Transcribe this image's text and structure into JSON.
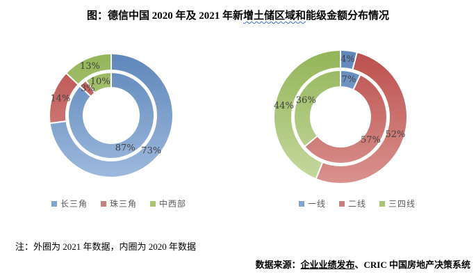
{
  "title": {
    "prefix": "图：德信中国 2020 年及 2021 年新",
    "flagged": "增土储区域和",
    "suffix": "能级金额分布情况"
  },
  "note": "注：外圈为 2021 年数据，内圈为 2020 年数据",
  "source": {
    "prefix": "数据来源：",
    "underlined": "企业业绩发布",
    "suffix": "、CRIC 中国房地产决策系统"
  },
  "chart_data": [
    {
      "type": "pie",
      "variant": "double-ring-donut",
      "name": "新增土储区域金额分布",
      "categories": [
        "长三角",
        "珠三角",
        "中西部"
      ],
      "series": [
        {
          "name": "2021年（外圈）",
          "values": [
            73,
            14,
            13
          ]
        },
        {
          "name": "2020年（内圈）",
          "values": [
            87,
            3,
            10
          ]
        }
      ],
      "unit": "%",
      "legend_position": "bottom",
      "colors": [
        {
          "top": "#5e86ba",
          "bottom": "#9db9dd",
          "legend": "#7da3d1"
        },
        {
          "top": "#bb4f4c",
          "bottom": "#d9928f",
          "legend": "#c8807d"
        },
        {
          "top": "#93b457",
          "bottom": "#c6d9a0",
          "legend": "#a9c573"
        }
      ]
    },
    {
      "type": "pie",
      "variant": "double-ring-donut",
      "name": "新增土储能级金额分布",
      "categories": [
        "一线",
        "二线",
        "三四线"
      ],
      "series": [
        {
          "name": "2021年（外圈）",
          "values": [
            4,
            52,
            44
          ]
        },
        {
          "name": "2020年（内圈）",
          "values": [
            7,
            57,
            36
          ]
        }
      ],
      "unit": "%",
      "legend_position": "bottom",
      "colors": [
        {
          "top": "#5e86ba",
          "bottom": "#9db9dd",
          "legend": "#7da3d1"
        },
        {
          "top": "#bb4f4c",
          "bottom": "#d9928f",
          "legend": "#c8807d"
        },
        {
          "top": "#93b457",
          "bottom": "#c6d9a0",
          "legend": "#a9c573"
        }
      ]
    }
  ]
}
